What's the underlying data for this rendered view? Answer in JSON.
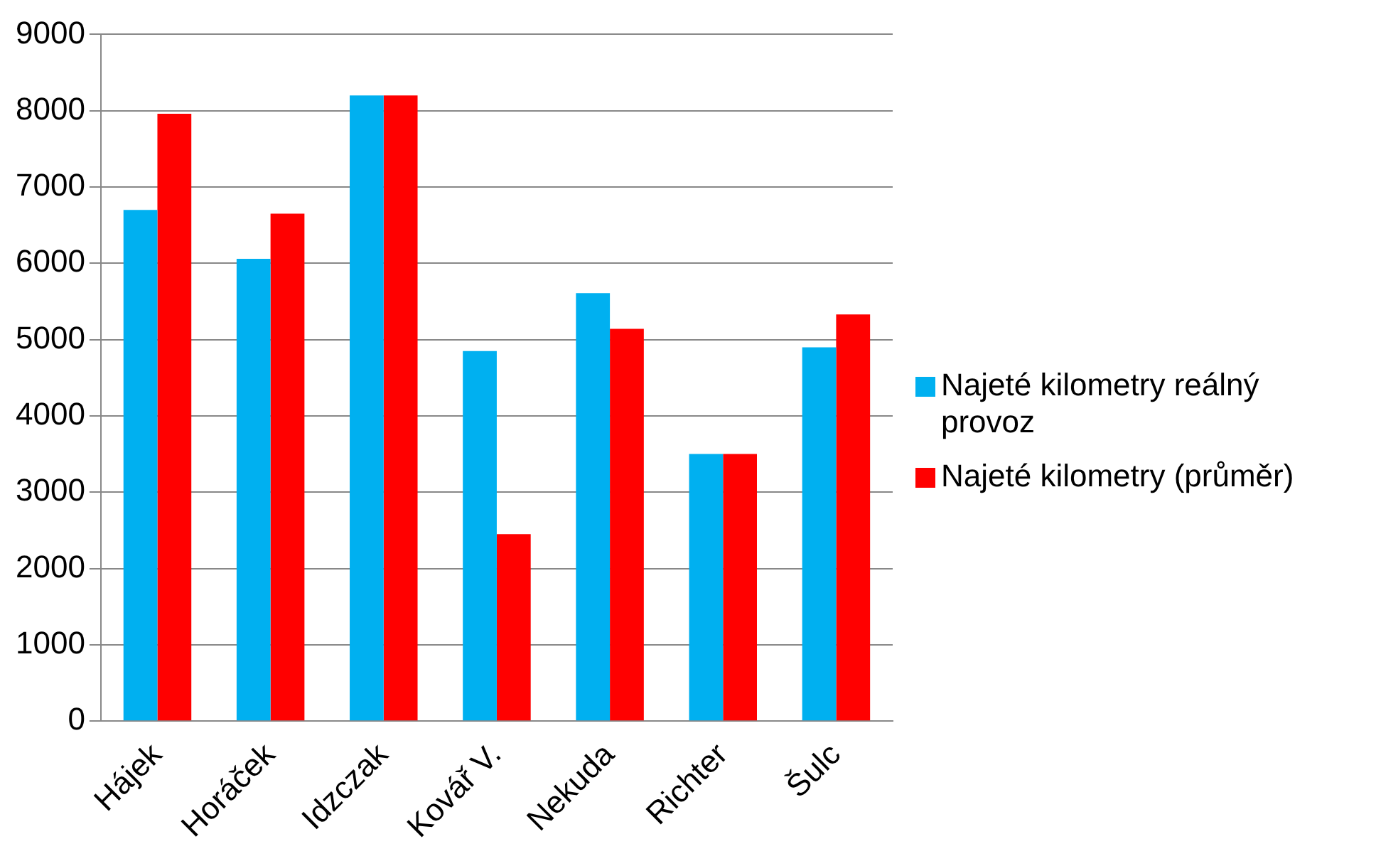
{
  "chart_data": {
    "type": "bar",
    "categories": [
      "Hájek",
      "Horáček",
      "Idzczak",
      "Kovář V.",
      "Nekuda",
      "Richter",
      "Šulc"
    ],
    "series": [
      {
        "name": "Najeté kilometry reálný provoz",
        "color": "#00b0f0",
        "values": [
          6700,
          6060,
          8200,
          4850,
          5610,
          3500,
          4900
        ]
      },
      {
        "name": "Najeté kilometry (průměr)",
        "color": "#ff0000",
        "values": [
          7960,
          6650,
          8200,
          2450,
          5140,
          3500,
          5330
        ]
      }
    ],
    "ylim": [
      0,
      9000
    ],
    "yticks": [
      0,
      1000,
      2000,
      3000,
      4000,
      5000,
      6000,
      7000,
      8000,
      9000
    ],
    "grid": "y",
    "legend": "right"
  }
}
